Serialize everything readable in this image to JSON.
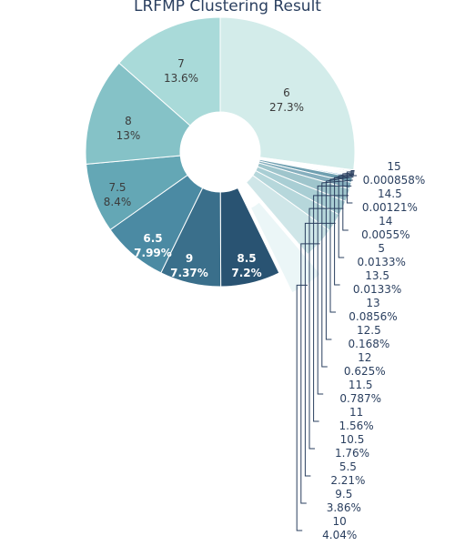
{
  "chart_data": {
    "type": "pie",
    "title": "LRFMP Clustering Result",
    "hole": true,
    "slices": [
      {
        "label": "6",
        "pct_text": "27.3%",
        "value": 27.3,
        "color": "#d3ecea"
      },
      {
        "label": "15",
        "pct_text": "0.000858%",
        "value": 0.000858,
        "color": "#1f4e79"
      },
      {
        "label": "14.5",
        "pct_text": "0.00121%",
        "value": 0.00121,
        "color": "#2c6390"
      },
      {
        "label": "14",
        "pct_text": "0.0055%",
        "value": 0.0055,
        "color": "#3a78a4"
      },
      {
        "label": "5",
        "pct_text": "0.0133%",
        "value": 0.0133,
        "color": "#4b89b4"
      },
      {
        "label": "13.5",
        "pct_text": "0.0133%",
        "value": 0.0133,
        "color": "#5b98c0"
      },
      {
        "label": "13",
        "pct_text": "0.0856%",
        "value": 0.0856,
        "color": "#5f99b5"
      },
      {
        "label": "12.5",
        "pct_text": "0.168%",
        "value": 0.168,
        "color": "#4e90c0"
      },
      {
        "label": "12",
        "pct_text": "0.625%",
        "value": 0.625,
        "color": "#6f9fb0"
      },
      {
        "label": "11.5",
        "pct_text": "0.787%",
        "value": 0.787,
        "color": "#86afbe"
      },
      {
        "label": "11",
        "pct_text": "1.56%",
        "value": 1.56,
        "color": "#9fc5cc"
      },
      {
        "label": "10.5",
        "pct_text": "1.76%",
        "value": 1.76,
        "color": "#a9ced4"
      },
      {
        "label": "5.5",
        "pct_text": "2.21%",
        "value": 2.21,
        "color": "#b6d7db"
      },
      {
        "label": "9.5",
        "pct_text": "3.86%",
        "value": 3.86,
        "color": "#cfe6e8"
      },
      {
        "label": "10",
        "pct_text": "4.04%",
        "value": 4.04,
        "color": "#ebf6f7",
        "pulled": true
      },
      {
        "label": "8.5",
        "pct_text": "7.2%",
        "value": 7.2,
        "color": "#295372"
      },
      {
        "label": "9",
        "pct_text": "7.37%",
        "value": 7.37,
        "color": "#3a6f8b"
      },
      {
        "label": "6.5",
        "pct_text": "7.99%",
        "value": 7.99,
        "color": "#4b8aa3"
      },
      {
        "label": "7.5",
        "pct_text": "8.4%",
        "value": 8.4,
        "color": "#64a7b5"
      },
      {
        "label": "8",
        "pct_text": "13%",
        "value": 13.0,
        "color": "#85c2c7"
      },
      {
        "label": "7",
        "pct_text": "13.6%",
        "value": 13.6,
        "color": "#a9dad9"
      }
    ],
    "inside_labels": [
      "6",
      "8.5",
      "9",
      "6.5",
      "7.5",
      "8",
      "7"
    ],
    "outside_labels": [
      "15",
      "14.5",
      "14",
      "5",
      "13.5",
      "13",
      "12.5",
      "12",
      "11.5",
      "11",
      "10.5",
      "5.5",
      "9.5",
      "10"
    ],
    "colors": {
      "text_dark": "#3b3b3b",
      "text_light": "#ffffff",
      "leader": "#2a3f5f"
    }
  }
}
